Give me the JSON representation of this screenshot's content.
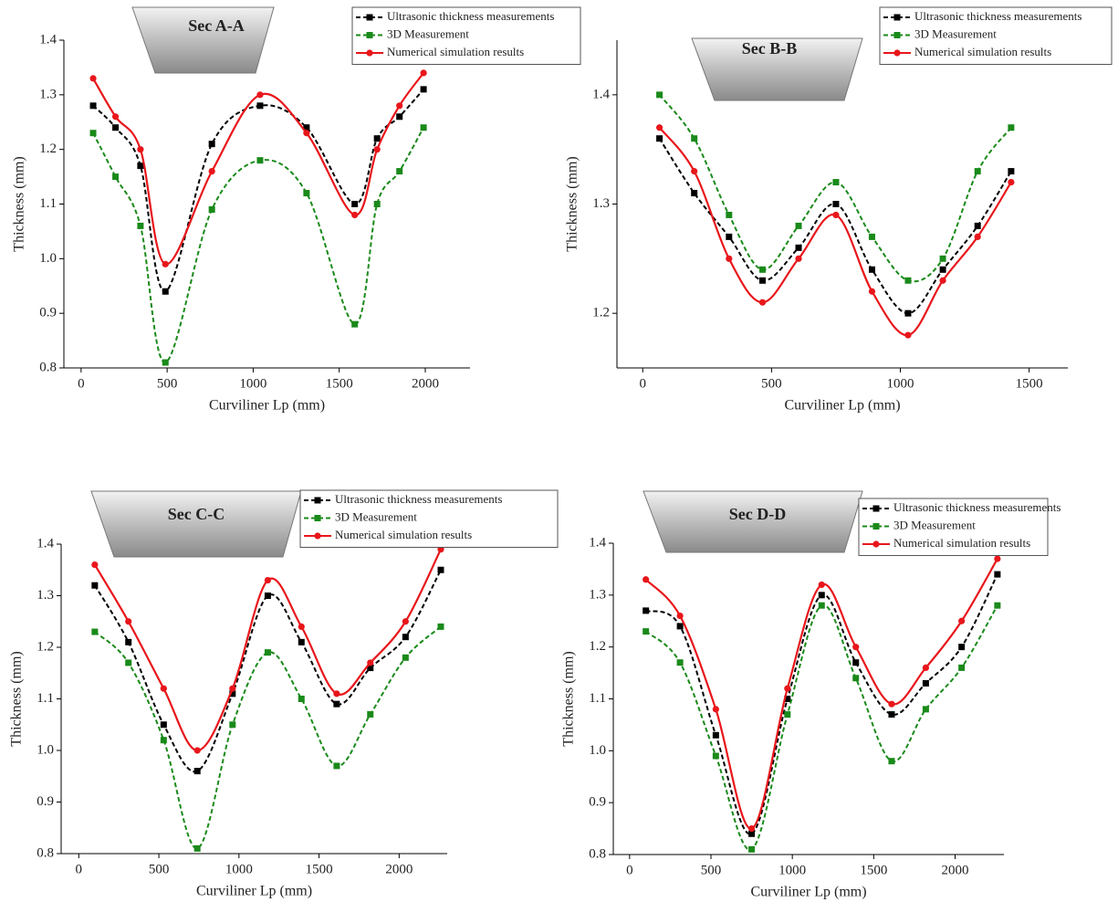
{
  "chart_data": [
    {
      "type": "line",
      "title": "Sec A-A",
      "xlabel": "Curviliner Lp (mm)",
      "ylabel": "Thickness (mm)",
      "x": [
        70,
        200,
        345,
        490,
        760,
        1040,
        1310,
        1590,
        1720,
        1850,
        1990
      ],
      "xlim": [
        -100,
        2260
      ],
      "xticks": [
        0,
        500,
        1000,
        1500,
        2000
      ],
      "ylim": [
        0.8,
        1.4
      ],
      "yticks": [
        0.8,
        0.9,
        {
          "value": 1,
          "label": "1.0"
        },
        1.1,
        1.2,
        1.3,
        1.4
      ],
      "legend": "upper right",
      "series": [
        {
          "name": "Ultrasonic thickness measurements",
          "color": "#000000",
          "line_style": "dashed",
          "marker": "square",
          "values": [
            1.28,
            1.24,
            1.17,
            0.94,
            1.21,
            1.28,
            1.24,
            1.1,
            1.22,
            1.26,
            1.31
          ]
        },
        {
          "name": "3D Measurement",
          "color": "#1a8a1a",
          "line_style": "dashed",
          "marker": "square",
          "values": [
            1.23,
            1.15,
            1.06,
            0.81,
            1.09,
            1.18,
            1.12,
            0.88,
            1.1,
            1.16,
            1.24
          ]
        },
        {
          "name": "Numerical simulation results",
          "color": "#e8161b",
          "line_style": "solid",
          "marker": "circle",
          "values": [
            1.33,
            1.26,
            1.2,
            0.99,
            1.16,
            1.3,
            1.23,
            1.08,
            1.2,
            1.28,
            1.34
          ]
        }
      ]
    },
    {
      "type": "line",
      "title": "Sec B-B",
      "xlabel": "Curviliner Lp (mm)",
      "ylabel": "Thickness (mm)",
      "x": [
        65,
        200,
        335,
        465,
        605,
        750,
        890,
        1030,
        1165,
        1300,
        1430
      ],
      "xlim": [
        -100,
        1650
      ],
      "xticks": [
        0,
        500,
        1000,
        1500
      ],
      "ylim": [
        1.15,
        1.45
      ],
      "yticks": [
        1.2,
        1.3,
        1.4
      ],
      "legend": "upper right",
      "series": [
        {
          "name": "Ultrasonic thickness measurements",
          "color": "#000000",
          "line_style": "dashed",
          "marker": "square",
          "values": [
            1.36,
            1.31,
            1.27,
            1.23,
            1.26,
            1.3,
            1.24,
            1.2,
            1.24,
            1.28,
            1.33
          ]
        },
        {
          "name": "3D Measurement",
          "color": "#1a8a1a",
          "line_style": "dashed",
          "marker": "square",
          "values": [
            1.4,
            1.36,
            1.29,
            1.24,
            1.28,
            1.32,
            1.27,
            1.23,
            1.25,
            1.33,
            1.37
          ]
        },
        {
          "name": "Numerical simulation results",
          "color": "#e8161b",
          "line_style": "solid",
          "marker": "circle",
          "values": [
            1.37,
            1.33,
            1.25,
            1.21,
            1.25,
            1.29,
            1.22,
            1.18,
            1.23,
            1.27,
            1.32
          ]
        }
      ]
    },
    {
      "type": "line",
      "title": "Sec C-C",
      "xlabel": "Curviliner Lp (mm)",
      "ylabel": "Thickness (mm)",
      "x": [
        100,
        310,
        530,
        740,
        960,
        1180,
        1390,
        1610,
        1820,
        2040,
        2260
      ],
      "xlim": [
        -110,
        2300
      ],
      "xticks": [
        0,
        500,
        1000,
        1500,
        2000
      ],
      "ylim": [
        0.8,
        1.4
      ],
      "yticks": [
        0.8,
        0.9,
        {
          "value": 1,
          "label": "1.0"
        },
        1.1,
        1.2,
        1.3,
        1.4
      ],
      "legend": "upper right",
      "series": [
        {
          "name": "Ultrasonic thickness measurements",
          "color": "#000000",
          "line_style": "dashed",
          "marker": "square",
          "values": [
            1.32,
            1.21,
            1.05,
            0.96,
            1.11,
            1.3,
            1.21,
            1.09,
            1.16,
            1.22,
            1.35
          ]
        },
        {
          "name": "3D Measurement",
          "color": "#1a8a1a",
          "line_style": "dashed",
          "marker": "square",
          "values": [
            1.23,
            1.17,
            1.02,
            0.81,
            1.05,
            1.19,
            1.1,
            0.97,
            1.07,
            1.18,
            1.24
          ]
        },
        {
          "name": "Numerical simulation results",
          "color": "#e8161b",
          "line_style": "solid",
          "marker": "circle",
          "values": [
            1.36,
            1.25,
            1.12,
            1.0,
            1.12,
            1.33,
            1.24,
            1.11,
            1.17,
            1.25,
            1.39
          ]
        }
      ]
    },
    {
      "type": "line",
      "title": "Sec D-D",
      "xlabel": "Curviliner Lp (mm)",
      "ylabel": "Thickness (mm)",
      "x": [
        100,
        310,
        530,
        750,
        970,
        1180,
        1390,
        1610,
        1820,
        2040,
        2260
      ],
      "xlim": [
        -100,
        2300
      ],
      "xticks": [
        0,
        500,
        1000,
        1500,
        2000
      ],
      "ylim": [
        0.8,
        1.4
      ],
      "yticks": [
        0.8,
        0.9,
        {
          "value": 1,
          "label": "1.0"
        },
        1.1,
        1.2,
        1.3,
        1.4
      ],
      "legend": "upper right",
      "series": [
        {
          "name": "Ultrasonic thickness measurements",
          "color": "#000000",
          "line_style": "dashed",
          "marker": "square",
          "values": [
            1.27,
            1.24,
            1.03,
            0.84,
            1.1,
            1.3,
            1.17,
            1.07,
            1.13,
            1.2,
            1.34
          ]
        },
        {
          "name": "3D Measurement",
          "color": "#1a8a1a",
          "line_style": "dashed",
          "marker": "square",
          "values": [
            1.23,
            1.17,
            0.99,
            0.81,
            1.07,
            1.28,
            1.14,
            0.98,
            1.08,
            1.16,
            1.28
          ]
        },
        {
          "name": "Numerical simulation results",
          "color": "#e8161b",
          "line_style": "solid",
          "marker": "circle",
          "values": [
            1.33,
            1.26,
            1.08,
            0.85,
            1.12,
            1.32,
            1.2,
            1.09,
            1.16,
            1.25,
            1.37
          ]
        }
      ]
    }
  ]
}
